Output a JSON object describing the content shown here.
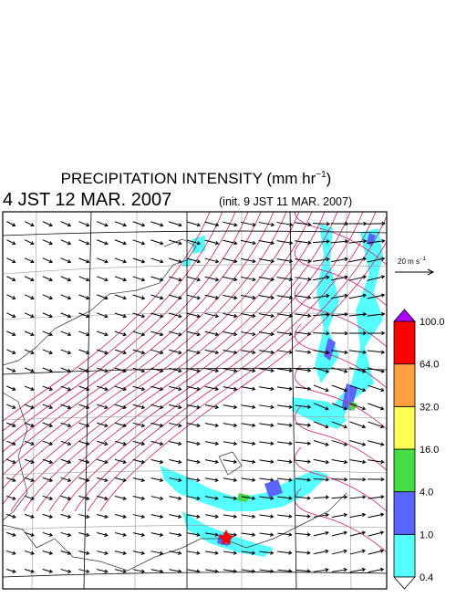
{
  "header": {
    "title": {
      "text": "PRECIPITATION INTENSITY (mm hr",
      "superscript": "−1",
      "close": ")"
    },
    "valid_time": "4 JST 12 MAR. 2007",
    "init_time": "(init. 9 JST 11 MAR. 2007)"
  },
  "vector_scale": {
    "text": "20 m s",
    "superscript": "−1"
  },
  "colorbar": {
    "labels": [
      "0.4",
      "1.0",
      "4.0",
      "16.0",
      "32.0",
      "64.0",
      "100.0"
    ],
    "colors": [
      "#55ffff",
      "#5a64ff",
      "#44dd44",
      "#ffff55",
      "#ffa040",
      "#ff0000"
    ],
    "under_color": "#ffffff",
    "over_color": "#aa00ff"
  }
}
